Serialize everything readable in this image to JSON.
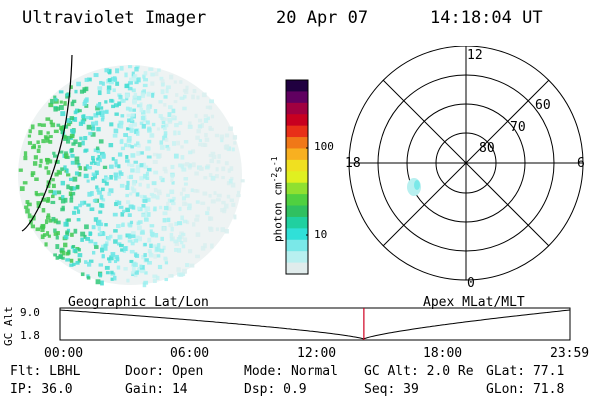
{
  "header": {
    "instrument": "Ultraviolet Imager",
    "date": "20 Apr 07",
    "time": "14:18:04 UT"
  },
  "colorbar": {
    "label": "photon cm",
    "label_exp1": "-2",
    "label_unit2": "s",
    "label_exp2": "-1",
    "ticks": [
      "100",
      "10"
    ],
    "colors": [
      "#e0ecec",
      "#b8f0f0",
      "#7ae8e8",
      "#30e0d8",
      "#20d0a0",
      "#30c060",
      "#50d040",
      "#90e030",
      "#e0f020",
      "#f0e020",
      "#f8b020",
      "#f07818",
      "#e83018",
      "#c80020",
      "#a00040",
      "#600060",
      "#200040"
    ]
  },
  "polar": {
    "labels": {
      "mlt_noon": "12",
      "mlt_dusk": "18",
      "mlt_dawn": "6",
      "mlt_midnight": "0",
      "lat60": "60",
      "lat70": "70",
      "lat80": "80"
    }
  },
  "timeline": {
    "title_left": "Geographic Lat/Lon",
    "title_right": "Apex MLat/MLT",
    "ylabel": "GC Alt",
    "y_ticks": [
      "9.0",
      "1.8"
    ],
    "x_ticks": [
      "00:00",
      "06:00",
      "12:00",
      "18:00",
      "23:59"
    ],
    "current_time_hours": 14.3
  },
  "status": {
    "filter_label": "Flt:",
    "filter_value": "LBHL",
    "door_label": "Door:",
    "door_value": "Open",
    "mode_label": "Mode:",
    "mode_value": "Normal",
    "gcalt_label": "GC Alt:",
    "gcalt_value": "2.0 Re",
    "glat_label": "GLat:",
    "glat_value": "77.1",
    "ip_label": "IP:",
    "ip_value": "36.0",
    "gain_label": "Gain:",
    "gain_value": "14",
    "dsp_label": "Dsp:",
    "dsp_value": "0.9",
    "seq_label": "Seq:",
    "seq_value": "39",
    "glon_label": "GLon:",
    "glon_value": "71.8"
  }
}
